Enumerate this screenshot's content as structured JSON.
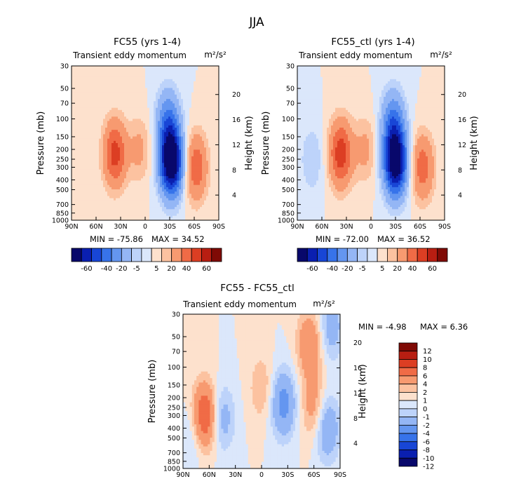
{
  "figure_title": "JJA",
  "colors": {
    "full_scale": [
      "#08086b",
      "#0a1fb0",
      "#1846d6",
      "#3773ea",
      "#6496f0",
      "#94b6f5",
      "#bdd3fa",
      "#dbe7fb",
      "#fde1cd",
      "#fcc2a0",
      "#f79a70",
      "#f06b46",
      "#dc3e23",
      "#b81e12",
      "#7f0a05"
    ],
    "diff_scale": [
      "#08086b",
      "#0a1fb0",
      "#1846d6",
      "#3773ea",
      "#6496f0",
      "#94b6f5",
      "#bdd3fa",
      "#dbe7fb",
      "#fde1cd",
      "#fcc2a0",
      "#f79a70",
      "#f06b46",
      "#dc3e23",
      "#b81e12",
      "#7f0a05"
    ]
  },
  "panels": [
    {
      "title": "FC55 (yrs 1-4)",
      "subtitle": "Transient eddy momentum",
      "units": "m²/s²",
      "min_text": "MIN = -75.86",
      "max_text": "MAX = 34.52"
    },
    {
      "title": "FC55_ctl (yrs 1-4)",
      "subtitle": "Transient eddy momentum",
      "units": "m²/s²",
      "min_text": "MIN = -72.00",
      "max_text": "MAX = 36.52"
    },
    {
      "title": "FC55 - FC55_ctl",
      "subtitle": "Transient eddy momentum",
      "units": "m²/s²",
      "min_text": "MIN = -4.98",
      "max_text": "MAX = 6.36"
    }
  ],
  "chart_data": [
    {
      "type": "heatmap",
      "title": "FC55 (yrs 1-4)",
      "subtitle": "Transient eddy momentum",
      "units": "m²/s²",
      "xlabel": "",
      "ylabel": "Pressure (mb)",
      "y2label": "Height (km)",
      "xticks": [
        "90N",
        "60N",
        "30N",
        "0",
        "30S",
        "60S",
        "90S"
      ],
      "xlim": [
        90,
        -90
      ],
      "yticks": [
        30,
        50,
        70,
        100,
        150,
        200,
        250,
        300,
        400,
        500,
        700,
        850,
        1000
      ],
      "ylim": [
        1000,
        30
      ],
      "yscale": "log",
      "y2ticks": [
        4,
        8,
        12,
        16,
        20
      ],
      "min": -75.86,
      "max": 34.52,
      "levels": [
        -60,
        -40,
        -20,
        -5,
        5,
        20,
        40,
        60
      ],
      "features": [
        {
          "lat": -32,
          "p": 270,
          "value": -75.86
        },
        {
          "lat": -28,
          "p": 110,
          "value": -30
        },
        {
          "lat": 37,
          "p": 220,
          "value": 34.52
        },
        {
          "lat": -62,
          "p": 300,
          "value": 28
        },
        {
          "lat": 7,
          "p": 200,
          "value": 12
        }
      ]
    },
    {
      "type": "heatmap",
      "title": "FC55_ctl (yrs 1-4)",
      "subtitle": "Transient eddy momentum",
      "units": "m²/s²",
      "xlabel": "",
      "ylabel": "Pressure (mb)",
      "y2label": "Height (km)",
      "xticks": [
        "90N",
        "60N",
        "30N",
        "0",
        "30S",
        "60S",
        "90S"
      ],
      "xlim": [
        90,
        -90
      ],
      "yticks": [
        30,
        50,
        70,
        100,
        150,
        200,
        250,
        300,
        400,
        500,
        700,
        850,
        1000
      ],
      "ylim": [
        1000,
        30
      ],
      "yscale": "log",
      "y2ticks": [
        4,
        8,
        12,
        16,
        20
      ],
      "min": -72.0,
      "max": 36.52,
      "levels": [
        -60,
        -40,
        -20,
        -5,
        5,
        20,
        40,
        60
      ],
      "features": [
        {
          "lat": -30,
          "p": 270,
          "value": -72.0
        },
        {
          "lat": -27,
          "p": 110,
          "value": -30
        },
        {
          "lat": 37,
          "p": 220,
          "value": 36.52
        },
        {
          "lat": -63,
          "p": 300,
          "value": 26
        },
        {
          "lat": 7,
          "p": 200,
          "value": 12
        },
        {
          "lat": 72,
          "p": 250,
          "value": -10
        }
      ]
    },
    {
      "type": "heatmap",
      "title": "FC55 - FC55_ctl",
      "subtitle": "Transient eddy momentum",
      "units": "m²/s²",
      "xlabel": "",
      "ylabel": "Pressure (mb)",
      "y2label": "Height (km)",
      "xticks": [
        "90N",
        "60N",
        "30N",
        "0",
        "30S",
        "60S",
        "90S"
      ],
      "xlim": [
        90,
        -90
      ],
      "yticks": [
        30,
        50,
        70,
        100,
        150,
        200,
        250,
        300,
        400,
        500,
        700,
        850,
        1000
      ],
      "ylim": [
        1000,
        30
      ],
      "yscale": "log",
      "y2ticks": [
        4,
        8,
        12,
        16,
        20
      ],
      "min": -4.98,
      "max": 6.36,
      "levels": [
        -12,
        -10,
        -8,
        -6,
        -4,
        -2,
        -1,
        0,
        1,
        2,
        4,
        6,
        8,
        10,
        12
      ],
      "features": [
        {
          "lat": 65,
          "p": 300,
          "value": 6.36
        },
        {
          "lat": -25,
          "p": 230,
          "value": -4.98
        },
        {
          "lat": 45,
          "p": 320,
          "value": -3
        },
        {
          "lat": -55,
          "p": 60,
          "value": 4
        },
        {
          "lat": -60,
          "p": 250,
          "value": 3
        },
        {
          "lat": -75,
          "p": 400,
          "value": -4
        },
        {
          "lat": -80,
          "p": 40,
          "value": -3
        },
        {
          "lat": 0,
          "p": 160,
          "value": 2
        },
        {
          "lat": 80,
          "p": 500,
          "value": -1.5
        }
      ]
    }
  ],
  "colorbar_top": {
    "labels": [
      "-60",
      "-40",
      "-20",
      "-5",
      "5",
      "20",
      "40",
      "60"
    ]
  },
  "colorbar_diff": {
    "labels": [
      "12",
      "10",
      "8",
      "6",
      "4",
      "2",
      "1",
      "0",
      "-1",
      "-2",
      "-4",
      "-6",
      "-8",
      "-10",
      "-12"
    ]
  }
}
